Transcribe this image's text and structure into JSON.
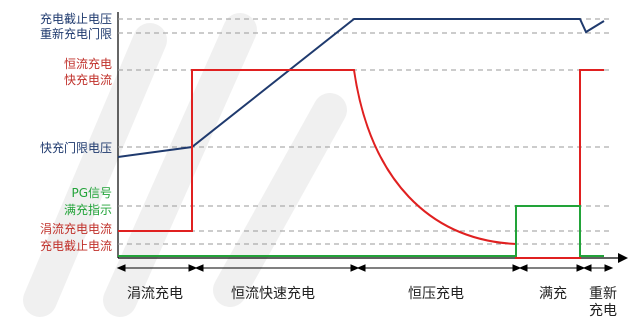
{
  "labels": {
    "charge_cutoff_voltage": "充电截止电压",
    "recharge_threshold": "重新充电门限",
    "cc_charge": "恒流充电",
    "fast_charge_current": "快充电流",
    "fast_charge_threshold_voltage": "快充门限电压",
    "pg_signal": "PG信号",
    "full_charge_indicator": "满充指示",
    "trickle_charge_current": "涓流充电电流",
    "charge_cutoff_current": "充电截止电流"
  },
  "phases": {
    "trickle": "涓流充电",
    "cc_fast": "恒流快速充电",
    "cv": "恒压充电",
    "full": "满充",
    "recharge_line1": "重新",
    "recharge_line2": "充电"
  },
  "colors": {
    "voltage": "#1f3a6e",
    "current": "#e02020",
    "indicator": "#22a339",
    "label_blue": "#1f3a6e",
    "label_red": "#c0302a",
    "label_green": "#22a339",
    "axis": "#000000",
    "guide": "#9a9a9a"
  }
}
